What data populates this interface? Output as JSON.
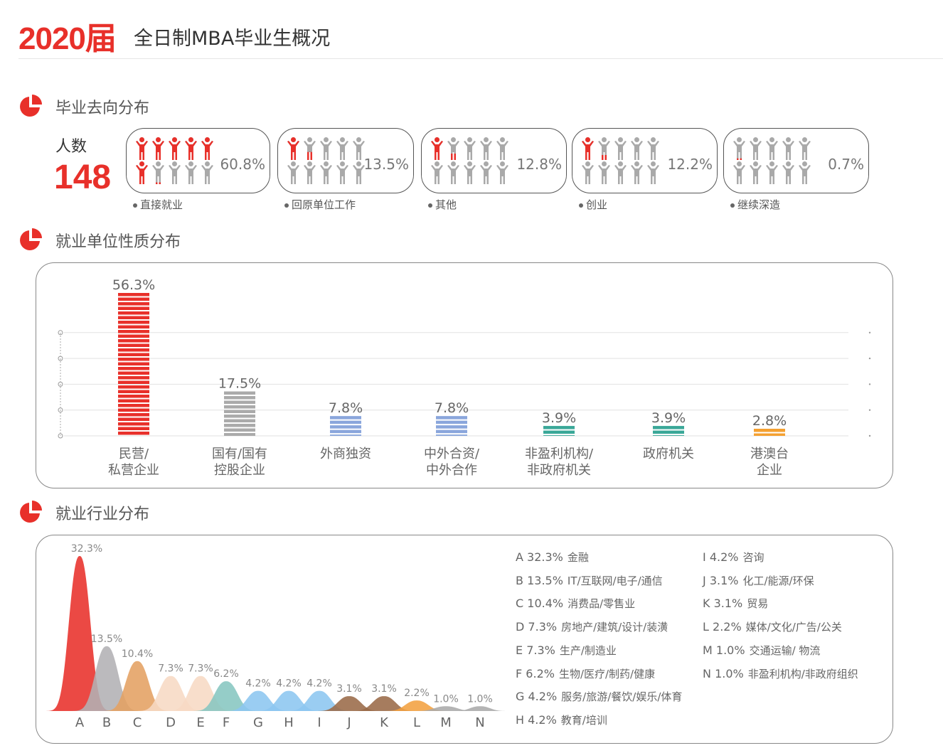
{
  "header": {
    "year": "2020届",
    "title": "全日制MBA毕业生概况"
  },
  "colors": {
    "accent": "#e8302a",
    "inactive": "#a9a9a9"
  },
  "section1": {
    "title": "毕业去向分布",
    "icon": "pie-chart-icon",
    "count_label": "人数",
    "count_value": "148",
    "cards": [
      {
        "label": "直接就业",
        "percent_text": "60.8%",
        "percent": 60.8
      },
      {
        "label": "回原单位工作",
        "percent_text": "13.5%",
        "percent": 13.5
      },
      {
        "label": "其他",
        "percent_text": "12.8%",
        "percent": 12.8
      },
      {
        "label": "创业",
        "percent_text": "12.2%",
        "percent": 12.2
      },
      {
        "label": "继续深造",
        "percent_text": "0.7%",
        "percent": 0.7
      }
    ]
  },
  "section2": {
    "title": "就业单位性质分布",
    "icon": "pie-chart-icon"
  },
  "section3": {
    "title": "就业行业分布",
    "icon": "pie-chart-icon"
  },
  "chart_data": [
    {
      "type": "bar",
      "categories": [
        [
          "民营/",
          "私营企业"
        ],
        [
          "国有/国有",
          "控股企业"
        ],
        [
          "外商独资",
          ""
        ],
        [
          "中外合资/",
          "中外合作"
        ],
        [
          "非盈利机构/",
          "非政府机关"
        ],
        [
          "政府机关",
          ""
        ],
        [
          "港澳台",
          "企业"
        ]
      ],
      "values": [
        56.3,
        17.5,
        7.8,
        7.8,
        3.9,
        3.9,
        2.8
      ],
      "data_labels": [
        "56.3%",
        "17.5%",
        "7.8%",
        "7.8%",
        "3.9%",
        "3.9%",
        "2.8%"
      ],
      "colors": [
        "#e8302a",
        "#aaaaaa",
        "#8aa6dc",
        "#8aa6dc",
        "#3aa898",
        "#3aa898",
        "#f4a030"
      ],
      "grid": true,
      "ylim": [
        0,
        60
      ]
    },
    {
      "type": "area",
      "categories": [
        "A",
        "B",
        "C",
        "D",
        "E",
        "F",
        "G",
        "H",
        "I",
        "J",
        "K",
        "L",
        "M",
        "N"
      ],
      "values": [
        32.3,
        13.5,
        10.4,
        7.3,
        7.3,
        6.2,
        4.2,
        4.2,
        4.2,
        3.1,
        3.1,
        2.2,
        1.0,
        1.0
      ],
      "data_labels": [
        "32.3%",
        "13.5%",
        "10.4%",
        "7.3%",
        "7.3%",
        "6.2%",
        "4.2%",
        "4.2%",
        "4.2%",
        "3.1%",
        "3.1%",
        "2.2%",
        "1.0%",
        "1.0%"
      ],
      "colors": [
        "#e8302a",
        "#b2b0b4",
        "#e4a062",
        "#f7dac4",
        "#f7dac4",
        "#86c6c0",
        "#8cc6f0",
        "#8cc6f0",
        "#8cc6f0",
        "#9a6a48",
        "#9a6a48",
        "#f2a040",
        "#aaaaaa",
        "#aaaaaa"
      ],
      "legend": [
        {
          "code": "A",
          "pct": "32.3%",
          "name": "金融"
        },
        {
          "code": "B",
          "pct": "13.5%",
          "name": "IT/互联网/电子/通信"
        },
        {
          "code": "C",
          "pct": "10.4%",
          "name": "消费品/零售业"
        },
        {
          "code": "D",
          "pct": "7.3%",
          "name": "房地产/建筑/设计/装潢"
        },
        {
          "code": "E",
          "pct": "7.3%",
          "name": "生产/制造业"
        },
        {
          "code": "F",
          "pct": "6.2%",
          "name": "生物/医疗/制药/健康"
        },
        {
          "code": "G",
          "pct": "4.2%",
          "name": "服务/旅游/餐饮/娱乐/体育"
        },
        {
          "code": "H",
          "pct": "4.2%",
          "name": "教育/培训"
        },
        {
          "code": "I",
          "pct": "4.2%",
          "name": "咨询"
        },
        {
          "code": "J",
          "pct": "3.1%",
          "name": "化工/能源/环保"
        },
        {
          "code": "K",
          "pct": "3.1%",
          "name": "贸易"
        },
        {
          "code": "L",
          "pct": "2.2%",
          "name": "媒体/文化/广告/公关"
        },
        {
          "code": "M",
          "pct": "1.0%",
          "name": "交通运输/ 物流"
        },
        {
          "code": "N",
          "pct": "1.0%",
          "name": "非盈利机构/非政府组织"
        }
      ]
    }
  ]
}
